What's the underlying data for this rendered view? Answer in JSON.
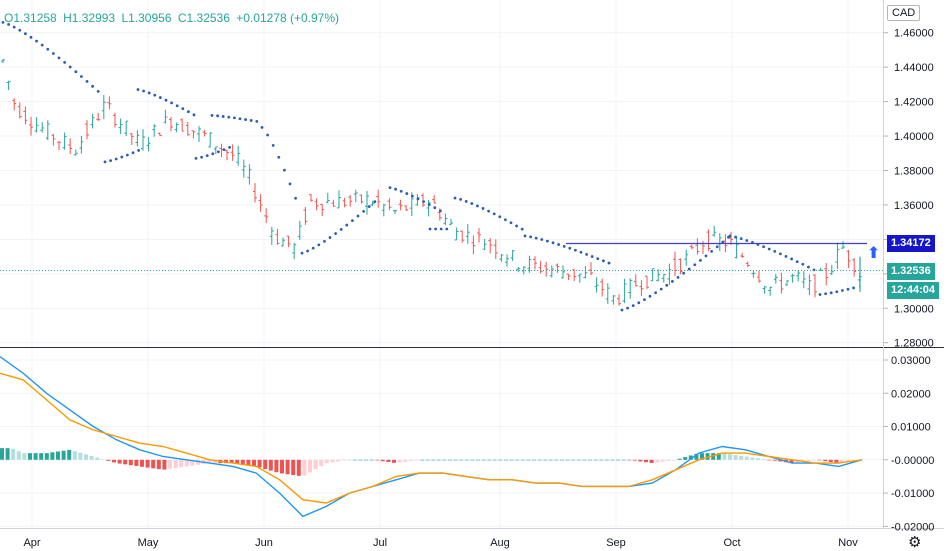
{
  "header": {
    "open": "O1.31258",
    "high": "H1.32993",
    "low": "L1.30956",
    "close": "C1.32536",
    "change": "+0.01278 (+0.97%)"
  },
  "currency_badge": "CAD",
  "price_labels": {
    "resistance": "1.34172",
    "last": "1.32536",
    "countdown": "12:44:04"
  },
  "colors": {
    "up": "#26a69a",
    "down": "#ef5350",
    "sar": "#2a5db0",
    "hline": "#3f3fd4",
    "macd": "#2196f3",
    "signal": "#ff9800",
    "hist_pos": "#26a69a",
    "hist_pos_light": "#b2dfdb",
    "hist_neg": "#ef5350",
    "hist_neg_light": "#ffcdd2"
  },
  "icons": {
    "arrow": "arrow-up-icon",
    "settings": "gear-icon"
  },
  "chart_data": [
    {
      "type": "candlestick",
      "name": "price",
      "x_ticks": [
        "Apr",
        "May",
        "Jun",
        "Jul",
        "Aug",
        "Sep",
        "Oct",
        "Nov"
      ],
      "y_ticks": [
        "1.46000",
        "1.44000",
        "1.42000",
        "1.40000",
        "1.38000",
        "1.36000",
        "1.34000",
        "1.32000",
        "1.30000",
        "1.28000"
      ],
      "ylim": [
        1.2775,
        1.479
      ],
      "horizontal_line": 1.34172,
      "last_price": 1.32536,
      "parabolic_sar": true
    },
    {
      "type": "macd",
      "y_ticks": [
        "0.03000",
        "0.02000",
        "0.01000",
        "-0.00000",
        "-0.01000",
        "-0.02000"
      ],
      "ylim": [
        -0.0205,
        0.033
      ],
      "series": [
        {
          "name": "",
          "values": [
            0.031,
            0.026,
            0.02,
            0.015,
            0.01,
            0.006,
            0.003,
            0.001,
            0.0,
            -0.001,
            -0.002,
            -0.004,
            -0.01,
            -0.017,
            -0.014,
            -0.01,
            -0.008,
            -0.006,
            -0.004,
            -0.004,
            -0.005,
            -0.006,
            -0.006,
            -0.007,
            -0.007,
            -0.008,
            -0.008,
            -0.008,
            -0.007,
            -0.003,
            0.002,
            0.004,
            0.003,
            0.001,
            -0.001,
            -0.001,
            -0.002,
            0.0
          ]
        },
        {
          "name": "",
          "values": [
            0.026,
            0.024,
            0.018,
            0.012,
            0.009,
            0.007,
            0.005,
            0.004,
            0.002,
            0.0,
            -0.001,
            -0.002,
            -0.006,
            -0.012,
            -0.013,
            -0.01,
            -0.008,
            -0.005,
            -0.004,
            -0.004,
            -0.005,
            -0.006,
            -0.006,
            -0.007,
            -0.007,
            -0.008,
            -0.008,
            -0.008,
            -0.006,
            -0.003,
            0.0,
            0.002,
            0.002,
            0.001,
            0.0,
            -0.001,
            -0.001,
            0.0
          ]
        }
      ]
    }
  ]
}
